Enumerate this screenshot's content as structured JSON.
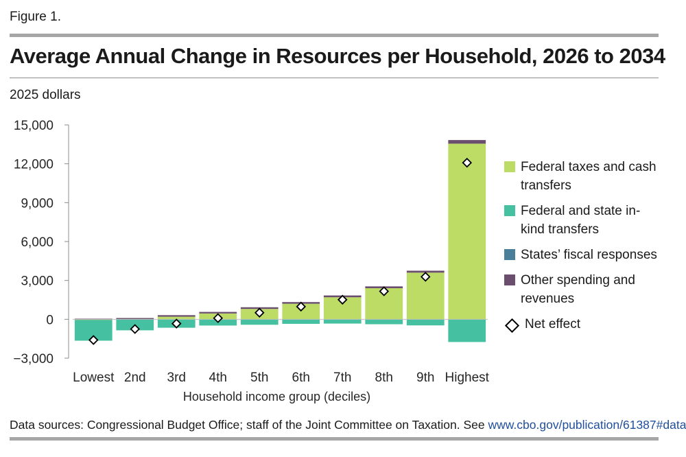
{
  "figure_label": "Figure 1.",
  "title": "Average Annual Change in Resources per Household, 2026 to 2034",
  "unit_label": "2025 dollars",
  "footer": {
    "text": "Data sources: Congressional Budget Office; staff of the Joint Committee on Taxation. See ",
    "link": "www.cbo.gov/publication/61387#data",
    "end": "."
  },
  "colors": {
    "federal_taxes": "#bcdc66",
    "inkind": "#45c0a0",
    "states": "#4a7f99",
    "other": "#6b4e6e",
    "axis": "#8c8c8c",
    "grid": "#d9d9d9"
  },
  "chart_data": {
    "type": "bar",
    "stacked": true,
    "title": "Average Annual Change in Resources per Household, 2026 to 2034",
    "ylabel": "2025 dollars",
    "xlabel": "Household income group (deciles)",
    "ylim": [
      -3000,
      15000
    ],
    "yticks": [
      -3000,
      0,
      3000,
      6000,
      9000,
      12000,
      15000
    ],
    "ytick_labels": [
      "−3,000",
      "0",
      "3,000",
      "6,000",
      "9,000",
      "12,000",
      "15,000"
    ],
    "categories": [
      "Lowest",
      "2nd",
      "3rd",
      "4th",
      "5th",
      "6th",
      "7th",
      "8th",
      "9th",
      "Highest"
    ],
    "series": [
      {
        "name": "Federal taxes and cash transfers",
        "color_key": "federal_taxes",
        "values": [
          -50,
          0,
          200,
          450,
          800,
          1200,
          1700,
          2400,
          3600,
          13550
        ]
      },
      {
        "name": "Federal and state in-kind transfers",
        "color_key": "inkind",
        "values": [
          -1600,
          -850,
          -650,
          -480,
          -420,
          -350,
          -330,
          -380,
          -470,
          -1750
        ]
      },
      {
        "name": "States’ fiscal responses",
        "color_key": "states",
        "values": [
          0,
          0,
          0,
          0,
          0,
          0,
          0,
          0,
          0,
          0
        ]
      },
      {
        "name": "Other spending and revenues",
        "color_key": "other",
        "values": [
          50,
          100,
          120,
          120,
          130,
          130,
          140,
          140,
          150,
          280
        ]
      }
    ],
    "net_effect": {
      "name": "Net effect",
      "values": [
        -1600,
        -750,
        -330,
        90,
        510,
        980,
        1510,
        2160,
        3280,
        12080
      ]
    },
    "legend": [
      {
        "label": "Federal taxes and cash transfers",
        "color_key": "federal_taxes"
      },
      {
        "label": "Federal and state in-kind transfers",
        "color_key": "inkind"
      },
      {
        "label": "States’ fiscal responses",
        "color_key": "states"
      },
      {
        "label": "Other spending and revenues",
        "color_key": "other"
      },
      {
        "label": "Net effect",
        "marker": "diamond"
      }
    ]
  }
}
